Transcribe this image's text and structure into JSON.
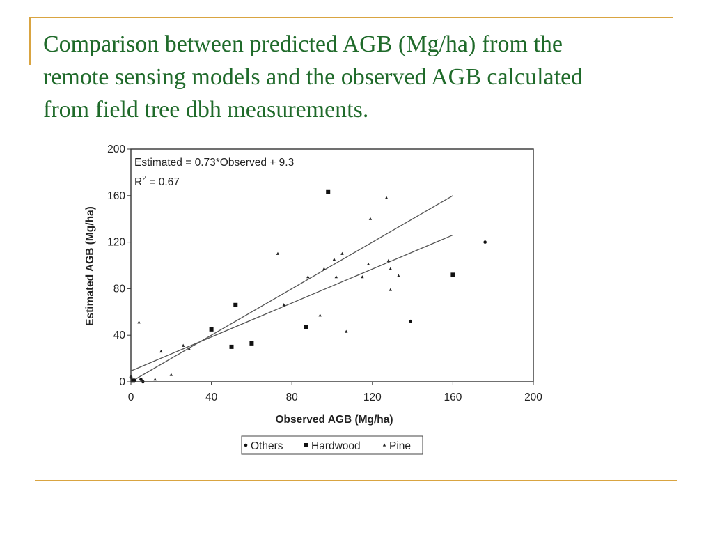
{
  "slide": {
    "title_lines": [
      "Comparison between predicted AGB (Mg/ha) from the",
      "remote sensing models and the observed AGB calculated",
      "from field tree dbh measurements."
    ]
  },
  "chart_data": {
    "type": "scatter",
    "xlabel": "Observed AGB (Mg/ha)",
    "ylabel": "Estimated AGB (Mg/ha)",
    "xlim": [
      0,
      200
    ],
    "ylim": [
      0,
      200
    ],
    "xticks": [
      "0",
      "40",
      "80",
      "120",
      "160",
      "200"
    ],
    "yticks": [
      "0",
      "40",
      "80",
      "120",
      "160",
      "200"
    ],
    "grid": false,
    "equation": "Estimated = 0.73*Observed + 9.3",
    "r2_label": "R",
    "r2_sup": "2",
    "r2_value": " = 0.67",
    "legend_position": "bottom",
    "lines": [
      {
        "x": [
          0,
          160
        ],
        "y": [
          0,
          160
        ]
      },
      {
        "x": [
          0,
          160
        ],
        "y": [
          9.3,
          126.1
        ]
      }
    ],
    "series": [
      {
        "name": "Others",
        "marker": "dot",
        "points": [
          [
            0,
            4
          ],
          [
            2,
            1
          ],
          [
            5,
            2
          ],
          [
            6,
            0
          ],
          [
            176,
            120
          ],
          [
            139,
            52
          ]
        ]
      },
      {
        "name": "Hardwood",
        "marker": "square",
        "points": [
          [
            98,
            163
          ],
          [
            52,
            66
          ],
          [
            40,
            45
          ],
          [
            50,
            30
          ],
          [
            60,
            33
          ],
          [
            87,
            47
          ],
          [
            160,
            92
          ],
          [
            1,
            1
          ]
        ]
      },
      {
        "name": "Pine",
        "marker": "triangle",
        "points": [
          [
            4,
            51
          ],
          [
            15,
            26
          ],
          [
            20,
            6
          ],
          [
            12,
            2
          ],
          [
            26,
            31
          ],
          [
            29,
            28
          ],
          [
            73,
            110
          ],
          [
            76,
            66
          ],
          [
            88,
            90
          ],
          [
            94,
            57
          ],
          [
            96,
            97
          ],
          [
            101,
            105
          ],
          [
            102,
            90
          ],
          [
            105,
            110
          ],
          [
            107,
            43
          ],
          [
            115,
            90
          ],
          [
            118,
            101
          ],
          [
            119,
            140
          ],
          [
            127,
            158
          ],
          [
            128,
            104
          ],
          [
            129,
            97
          ],
          [
            129,
            79
          ],
          [
            133,
            91
          ]
        ]
      }
    ]
  }
}
